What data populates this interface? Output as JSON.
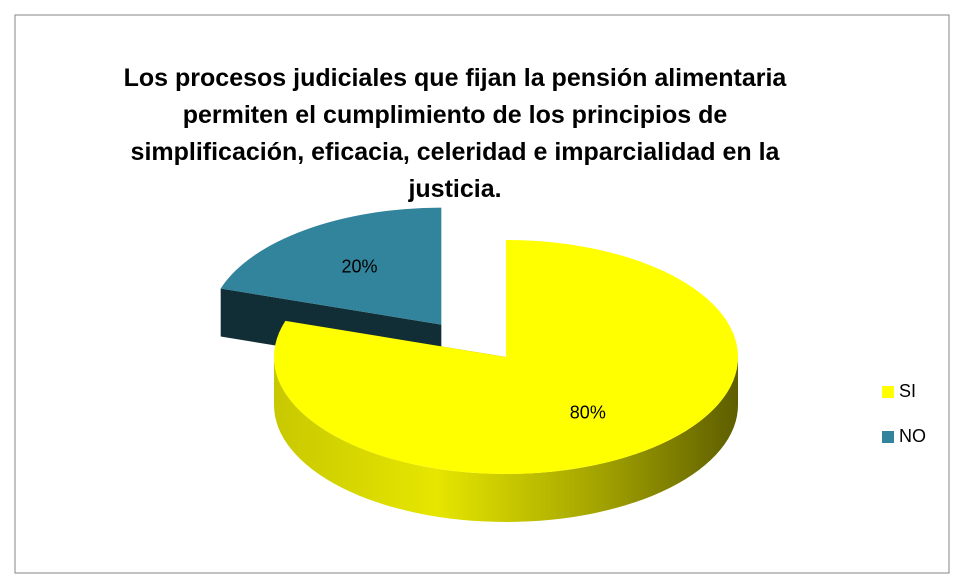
{
  "chart_data": {
    "type": "pie",
    "title": "Los procesos judiciales que fijan la pensión alimentaria permiten el cumplimiento de los principios de simplificación, eficacia, celeridad e imparcialidad en la justicia.",
    "categories": [
      "SI",
      "NO"
    ],
    "values": [
      80,
      20
    ],
    "value_labels": [
      "80%",
      "20%"
    ],
    "colors": [
      "#ffff00",
      "#31849b"
    ],
    "legend": "right"
  }
}
